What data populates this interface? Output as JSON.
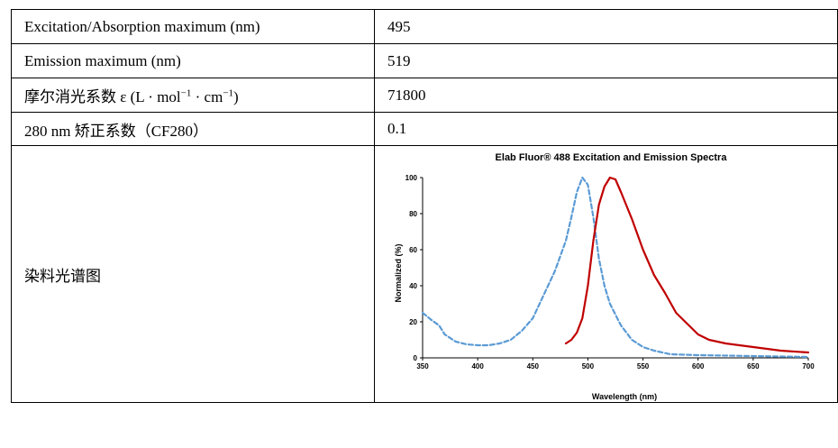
{
  "rows": [
    {
      "label": "Excitation/Absorption maximum (nm)",
      "value": "495"
    },
    {
      "label": "Emission maximum (nm)",
      "value": "519"
    },
    {
      "label_main": "摩尔消光系数 ε (L · mol",
      "label_sup1": "−1",
      "label_mid": " · cm",
      "label_sup2": "−1",
      "label_end": ")",
      "value": "71800"
    },
    {
      "label": "280 nm 矫正系数（CF280）",
      "value": "0.1"
    },
    {
      "label": "染料光谱图"
    }
  ],
  "chart_data": {
    "type": "line",
    "title": "Elab Fluor® 488 Excitation and Emission Spectra",
    "xlabel": "Wavelength (nm)",
    "ylabel": "Normalized (%)",
    "xlim": [
      350,
      700
    ],
    "ylim": [
      0,
      100
    ],
    "xticks": [
      "350",
      "400",
      "450",
      "500",
      "550",
      "600",
      "650",
      "700"
    ],
    "yticks": [
      "0",
      "20",
      "40",
      "60",
      "80",
      "100"
    ],
    "grid": false,
    "series": [
      {
        "style": "dashed",
        "color": "#5b9bd5",
        "points": [
          [
            350,
            25
          ],
          [
            358,
            21
          ],
          [
            365,
            18
          ],
          [
            370,
            13
          ],
          [
            380,
            9
          ],
          [
            390,
            7.5
          ],
          [
            400,
            7
          ],
          [
            410,
            7
          ],
          [
            420,
            8
          ],
          [
            430,
            10
          ],
          [
            440,
            15
          ],
          [
            450,
            22
          ],
          [
            460,
            35
          ],
          [
            470,
            48
          ],
          [
            480,
            65
          ],
          [
            485,
            78
          ],
          [
            490,
            92
          ],
          [
            495,
            100
          ],
          [
            500,
            96
          ],
          [
            505,
            78
          ],
          [
            510,
            55
          ],
          [
            515,
            40
          ],
          [
            520,
            30
          ],
          [
            530,
            18
          ],
          [
            540,
            10
          ],
          [
            550,
            6
          ],
          [
            560,
            4
          ],
          [
            575,
            2
          ],
          [
            600,
            1.5
          ],
          [
            650,
            1
          ],
          [
            700,
            0.5
          ]
        ]
      },
      {
        "style": "solid",
        "color": "#c00000",
        "points": [
          [
            480,
            8
          ],
          [
            485,
            10
          ],
          [
            490,
            14
          ],
          [
            495,
            22
          ],
          [
            500,
            40
          ],
          [
            505,
            65
          ],
          [
            510,
            85
          ],
          [
            515,
            95
          ],
          [
            520,
            100
          ],
          [
            525,
            99
          ],
          [
            530,
            92
          ],
          [
            540,
            77
          ],
          [
            550,
            60
          ],
          [
            560,
            46
          ],
          [
            570,
            36
          ],
          [
            580,
            25
          ],
          [
            590,
            19
          ],
          [
            600,
            13
          ],
          [
            610,
            10
          ],
          [
            625,
            8
          ],
          [
            650,
            6
          ],
          [
            675,
            4
          ],
          [
            700,
            3
          ]
        ]
      }
    ]
  }
}
